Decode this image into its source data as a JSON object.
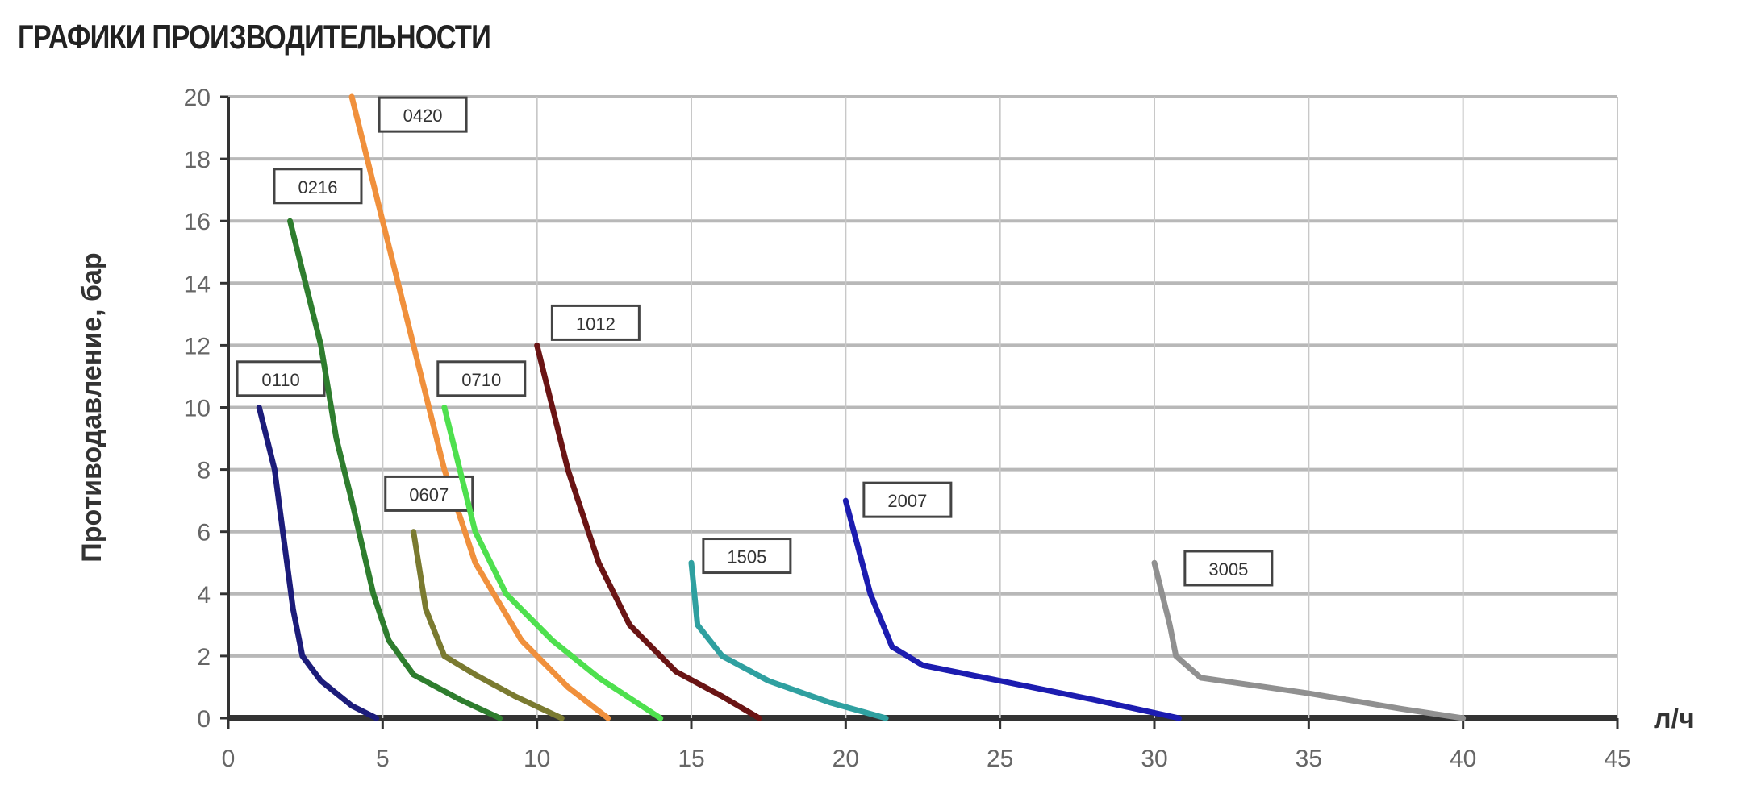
{
  "title": "ГРАФИКИ ПРОИЗВОДИТЕЛЬНОСТИ",
  "chart_data": {
    "type": "line",
    "title": "ГРАФИКИ ПРОИЗВОДИТЕЛЬНОСТИ",
    "xlabel": "л/ч",
    "ylabel": "Противодавление, бар",
    "xlim": [
      0,
      45
    ],
    "ylim": [
      0,
      20
    ],
    "xticks": [
      0,
      5,
      10,
      15,
      20,
      25,
      30,
      35,
      40,
      45
    ],
    "yticks": [
      0,
      2,
      4,
      6,
      8,
      10,
      12,
      14,
      16,
      18,
      20
    ],
    "grid": true,
    "legend": "inline labels",
    "series": [
      {
        "name": "0110",
        "color": "#1c1c7a",
        "label_at": [
          1.7,
          10.9
        ],
        "points": [
          [
            1,
            10
          ],
          [
            1.5,
            8
          ],
          [
            1.9,
            5
          ],
          [
            2.1,
            3.5
          ],
          [
            2.4,
            2
          ],
          [
            3,
            1.2
          ],
          [
            4,
            0.4
          ],
          [
            4.8,
            0
          ]
        ]
      },
      {
        "name": "0216",
        "color": "#2e7d2e",
        "label_at": [
          2.9,
          17.1
        ],
        "points": [
          [
            2,
            16
          ],
          [
            3,
            12
          ],
          [
            3.5,
            9
          ],
          [
            4,
            7
          ],
          [
            4.7,
            4
          ],
          [
            5.2,
            2.5
          ],
          [
            6,
            1.4
          ],
          [
            7.5,
            0.6
          ],
          [
            8.8,
            0
          ]
        ]
      },
      {
        "name": "0420",
        "color": "#f0903c",
        "label_at": [
          6.3,
          19.4
        ],
        "points": [
          [
            4,
            20
          ],
          [
            5,
            16
          ],
          [
            6,
            12
          ],
          [
            7,
            8
          ],
          [
            8,
            5
          ],
          [
            9.5,
            2.5
          ],
          [
            11,
            1
          ],
          [
            12.3,
            0
          ]
        ]
      },
      {
        "name": "0607",
        "color": "#7a7a30",
        "label_at": [
          6.5,
          7.2
        ],
        "points": [
          [
            6,
            6
          ],
          [
            6.4,
            3.5
          ],
          [
            7,
            2
          ],
          [
            8,
            1.4
          ],
          [
            9.3,
            0.7
          ],
          [
            10.8,
            0
          ]
        ]
      },
      {
        "name": "0710",
        "color": "#4ee04e",
        "label_at": [
          8.2,
          10.9
        ],
        "points": [
          [
            7,
            10
          ],
          [
            7.5,
            8
          ],
          [
            8,
            6
          ],
          [
            9,
            4
          ],
          [
            10.5,
            2.5
          ],
          [
            12,
            1.3
          ],
          [
            14,
            0
          ]
        ]
      },
      {
        "name": "1012",
        "color": "#6a1414",
        "label_at": [
          11.9,
          12.7
        ],
        "points": [
          [
            10,
            12
          ],
          [
            11,
            8
          ],
          [
            12,
            5
          ],
          [
            13,
            3
          ],
          [
            14.5,
            1.5
          ],
          [
            16,
            0.7
          ],
          [
            17.2,
            0
          ]
        ]
      },
      {
        "name": "1505",
        "color": "#2fa0a0",
        "label_at": [
          16.8,
          5.2
        ],
        "points": [
          [
            15,
            5
          ],
          [
            15.2,
            3
          ],
          [
            16,
            2
          ],
          [
            17.5,
            1.2
          ],
          [
            19.5,
            0.5
          ],
          [
            21.3,
            0
          ]
        ]
      },
      {
        "name": "2007",
        "color": "#1c1cb0",
        "label_at": [
          22,
          7
        ],
        "points": [
          [
            20,
            7
          ],
          [
            20.8,
            4
          ],
          [
            21.5,
            2.3
          ],
          [
            22.5,
            1.7
          ],
          [
            25,
            1.2
          ],
          [
            28,
            0.6
          ],
          [
            30.8,
            0
          ]
        ]
      },
      {
        "name": "3005",
        "color": "#909090",
        "label_at": [
          32.4,
          4.8
        ],
        "points": [
          [
            30,
            5
          ],
          [
            30.5,
            3
          ],
          [
            30.7,
            2
          ],
          [
            31.5,
            1.3
          ],
          [
            35,
            0.8
          ],
          [
            38,
            0.3
          ],
          [
            40,
            0
          ]
        ]
      }
    ]
  }
}
